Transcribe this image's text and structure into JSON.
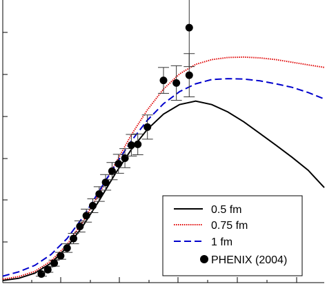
{
  "chart_data": {
    "type": "line",
    "title": "",
    "xlabel": "",
    "ylabel": "",
    "xlim": [
      0,
      5
    ],
    "ylim": [
      0,
      6.7
    ],
    "grid": false,
    "legend_position": "bottom-right",
    "series": [
      {
        "name": "0.5 fm",
        "color": "#000000",
        "dash": "solid",
        "x": [
          0,
          0.25,
          0.5,
          0.75,
          1.0,
          1.25,
          1.5,
          1.75,
          2.0,
          2.25,
          2.5,
          2.75,
          3.0,
          3.25,
          3.5,
          3.75,
          4.0,
          4.25,
          4.5,
          4.75,
          5.0
        ],
        "y": [
          0.05,
          0.1,
          0.22,
          0.45,
          0.82,
          1.32,
          1.9,
          2.52,
          3.08,
          3.55,
          3.9,
          4.12,
          4.2,
          4.12,
          3.95,
          3.72,
          3.45,
          3.18,
          2.9,
          2.6,
          2.2
        ]
      },
      {
        "name": "0.75 fm",
        "color": "#e00000",
        "dash": "dotted",
        "x": [
          0,
          0.25,
          0.5,
          0.75,
          1.0,
          1.25,
          1.5,
          1.75,
          2.0,
          2.25,
          2.5,
          2.75,
          3.0,
          3.25,
          3.5,
          3.75,
          4.0,
          4.25,
          4.5,
          4.75,
          5.0
        ],
        "y": [
          0.08,
          0.14,
          0.26,
          0.5,
          0.88,
          1.42,
          2.06,
          2.75,
          3.42,
          4.0,
          4.48,
          4.83,
          5.05,
          5.16,
          5.21,
          5.22,
          5.2,
          5.16,
          5.1,
          5.04,
          4.98
        ]
      },
      {
        "name": "1 fm",
        "color": "#0000cc",
        "dash": "dashed",
        "x": [
          0,
          0.25,
          0.5,
          0.75,
          1.0,
          1.25,
          1.5,
          1.75,
          2.0,
          2.25,
          2.5,
          2.75,
          3.0,
          3.25,
          3.5,
          3.75,
          4.0,
          4.25,
          4.5,
          4.75,
          5.0
        ],
        "y": [
          0.15,
          0.25,
          0.4,
          0.65,
          1.02,
          1.52,
          2.12,
          2.72,
          3.28,
          3.76,
          4.14,
          4.42,
          4.6,
          4.7,
          4.72,
          4.71,
          4.67,
          4.6,
          4.52,
          4.4,
          4.25
        ]
      },
      {
        "name": "PHENIX (2004)",
        "color": "#000000",
        "marker": "circle",
        "x": [
          0.6,
          0.7,
          0.8,
          0.9,
          1.0,
          1.1,
          1.2,
          1.3,
          1.4,
          1.5,
          1.6,
          1.7,
          1.8,
          1.9,
          2.0,
          2.1,
          2.25,
          2.5,
          2.7,
          2.9
        ],
        "y": [
          0.2,
          0.3,
          0.45,
          0.62,
          0.8,
          1.02,
          1.3,
          1.55,
          1.78,
          2.05,
          2.32,
          2.58,
          2.75,
          2.88,
          3.18,
          3.2,
          3.6,
          4.68,
          4.62,
          4.8
        ],
        "yerr": [
          0.05,
          0.06,
          0.07,
          0.08,
          0.1,
          0.12,
          0.13,
          0.15,
          0.16,
          0.17,
          0.18,
          0.2,
          0.22,
          0.22,
          0.25,
          0.24,
          0.28,
          0.3,
          0.4,
          0.5
        ]
      }
    ],
    "extra_point": {
      "x": 2.9,
      "y": 5.9,
      "yerr": 0.9
    }
  }
}
